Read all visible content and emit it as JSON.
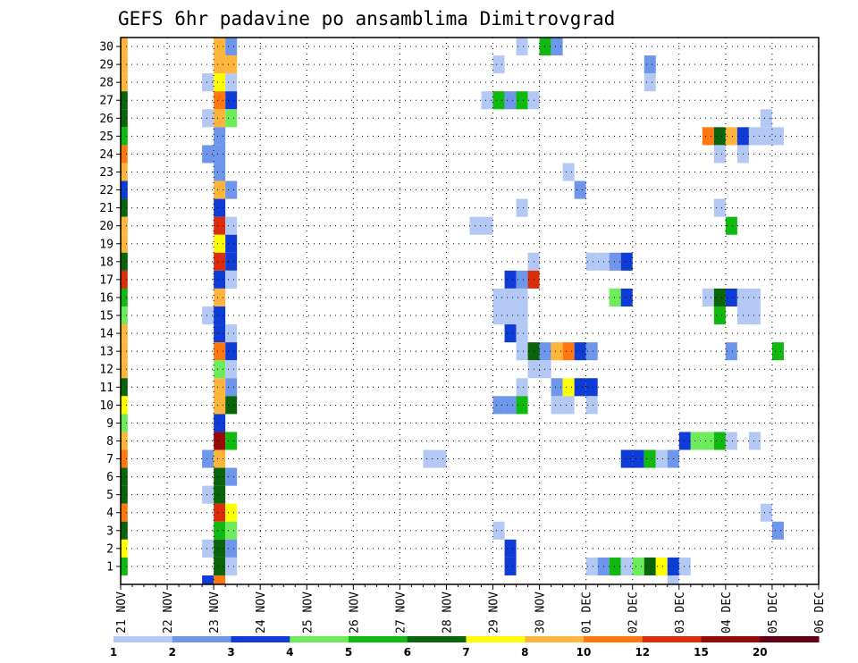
{
  "chart_data": {
    "type": "heatmap",
    "title": "GEFS 6hr padavine po ansamblima Dimitrovgrad",
    "xlabel": "",
    "ylabel": "",
    "x_tick_labels": [
      "21 NOV",
      "22 NOV",
      "23 NOV",
      "24 NOV",
      "25 NOV",
      "26 NOV",
      "27 NOV",
      "28 NOV",
      "29 NOV",
      "30 NOV",
      "01 DEC",
      "02 DEC",
      "03 DEC",
      "04 DEC",
      "05 DEC",
      "06 DEC"
    ],
    "y_tick_labels": [
      "1",
      "2",
      "3",
      "4",
      "5",
      "6",
      "7",
      "8",
      "9",
      "10",
      "11",
      "12",
      "13",
      "14",
      "15",
      "16",
      "17",
      "18",
      "19",
      "20",
      "21",
      "22",
      "23",
      "24",
      "25",
      "26",
      "27",
      "28",
      "29",
      "30"
    ],
    "grid": true,
    "legend_position": "bottom",
    "legend": {
      "boundaries": [
        1,
        2,
        3,
        4,
        5,
        6,
        7,
        8,
        10,
        12,
        15,
        20
      ],
      "labels": [
        "1",
        "2",
        "3",
        "4",
        "5",
        "6",
        "7",
        "8",
        "10",
        "12",
        "15",
        "20"
      ],
      "colors": [
        "#b4c8f5",
        "#6e96eb",
        "#0f3cd7",
        "#6eeb5a",
        "#0fb90f",
        "#0a640a",
        "#ffff00",
        "#ffb43c",
        "#ff780f",
        "#dc2d0a",
        "#960a0a",
        "#640014"
      ]
    },
    "cells": [
      [
        30,
        0,
        8
      ],
      [
        29,
        0,
        8
      ],
      [
        28,
        0,
        8
      ],
      [
        27,
        0,
        6
      ],
      [
        26,
        0,
        6
      ],
      [
        25,
        0,
        5
      ],
      [
        24,
        0,
        9
      ],
      [
        23,
        0,
        8
      ],
      [
        22,
        0,
        3
      ],
      [
        21,
        0,
        6
      ],
      [
        20,
        0,
        8
      ],
      [
        19,
        0,
        8
      ],
      [
        18,
        0,
        6
      ],
      [
        17,
        0,
        10
      ],
      [
        16,
        0,
        5
      ],
      [
        15,
        0,
        4
      ],
      [
        14,
        0,
        8
      ],
      [
        13,
        0,
        8
      ],
      [
        12,
        0,
        8
      ],
      [
        11,
        0,
        6
      ],
      [
        10,
        0,
        7
      ],
      [
        9,
        0,
        4
      ],
      [
        8,
        0,
        8
      ],
      [
        7,
        0,
        9
      ],
      [
        6,
        0,
        6
      ],
      [
        5,
        0,
        6
      ],
      [
        4,
        0,
        9
      ],
      [
        3,
        0,
        6
      ],
      [
        2,
        0,
        7
      ],
      [
        1,
        0,
        5
      ],
      [
        0,
        7,
        3
      ],
      [
        0,
        8,
        9
      ],
      [
        28,
        7,
        1
      ],
      [
        26,
        7,
        1
      ],
      [
        24,
        7,
        2
      ],
      [
        15,
        7,
        1
      ],
      [
        7,
        7,
        2
      ],
      [
        5,
        7,
        1
      ],
      [
        2,
        7,
        1
      ],
      [
        30,
        8,
        8
      ],
      [
        29,
        8,
        8
      ],
      [
        28,
        8,
        7
      ],
      [
        27,
        8,
        9
      ],
      [
        26,
        8,
        8
      ],
      [
        25,
        8,
        2
      ],
      [
        24,
        8,
        2
      ],
      [
        23,
        8,
        2
      ],
      [
        22,
        8,
        8
      ],
      [
        21,
        8,
        3
      ],
      [
        20,
        8,
        10
      ],
      [
        19,
        8,
        7
      ],
      [
        18,
        8,
        10
      ],
      [
        17,
        8,
        3
      ],
      [
        16,
        8,
        8
      ],
      [
        15,
        8,
        3
      ],
      [
        14,
        8,
        3
      ],
      [
        13,
        8,
        9
      ],
      [
        12,
        8,
        4
      ],
      [
        11,
        8,
        8
      ],
      [
        10,
        8,
        8
      ],
      [
        9,
        8,
        3
      ],
      [
        8,
        8,
        11
      ],
      [
        7,
        8,
        8
      ],
      [
        6,
        8,
        6
      ],
      [
        5,
        8,
        6
      ],
      [
        4,
        8,
        10
      ],
      [
        3,
        8,
        5
      ],
      [
        2,
        8,
        6
      ],
      [
        1,
        8,
        6
      ],
      [
        30,
        9,
        2
      ],
      [
        29,
        9,
        8
      ],
      [
        28,
        9,
        1
      ],
      [
        27,
        9,
        3
      ],
      [
        26,
        9,
        4
      ],
      [
        22,
        9,
        2
      ],
      [
        20,
        9,
        1
      ],
      [
        19,
        9,
        3
      ],
      [
        18,
        9,
        3
      ],
      [
        17,
        9,
        1
      ],
      [
        14,
        9,
        1
      ],
      [
        13,
        9,
        3
      ],
      [
        12,
        9,
        1
      ],
      [
        11,
        9,
        2
      ],
      [
        10,
        9,
        6
      ],
      [
        8,
        9,
        5
      ],
      [
        6,
        9,
        2
      ],
      [
        4,
        9,
        7
      ],
      [
        3,
        9,
        4
      ],
      [
        2,
        9,
        2
      ],
      [
        1,
        9,
        1
      ],
      [
        7,
        26,
        1
      ],
      [
        7,
        27,
        1
      ],
      [
        20,
        30,
        1
      ],
      [
        20,
        31,
        1
      ],
      [
        27,
        31,
        1
      ],
      [
        29,
        32,
        1
      ],
      [
        27,
        32,
        5
      ],
      [
        16,
        32,
        1
      ],
      [
        15,
        32,
        1
      ],
      [
        10,
        32,
        2
      ],
      [
        3,
        32,
        1
      ],
      [
        27,
        33,
        2
      ],
      [
        17,
        33,
        3
      ],
      [
        16,
        33,
        1
      ],
      [
        15,
        33,
        1
      ],
      [
        14,
        33,
        3
      ],
      [
        10,
        33,
        2
      ],
      [
        2,
        33,
        3
      ],
      [
        1,
        33,
        3
      ],
      [
        30,
        34,
        1
      ],
      [
        27,
        34,
        5
      ],
      [
        21,
        34,
        1
      ],
      [
        17,
        34,
        2
      ],
      [
        16,
        34,
        1
      ],
      [
        15,
        34,
        1
      ],
      [
        14,
        34,
        1
      ],
      [
        13,
        34,
        1
      ],
      [
        11,
        34,
        1
      ],
      [
        10,
        34,
        5
      ],
      [
        27,
        35,
        1
      ],
      [
        18,
        35,
        1
      ],
      [
        17,
        35,
        10
      ],
      [
        13,
        35,
        6
      ],
      [
        12,
        35,
        1
      ],
      [
        30,
        36,
        5
      ],
      [
        13,
        36,
        2
      ],
      [
        12,
        36,
        1
      ],
      [
        30,
        37,
        2
      ],
      [
        13,
        37,
        8
      ],
      [
        11,
        37,
        2
      ],
      [
        10,
        37,
        1
      ],
      [
        23,
        38,
        1
      ],
      [
        13,
        38,
        9
      ],
      [
        11,
        38,
        7
      ],
      [
        10,
        38,
        1
      ],
      [
        22,
        39,
        2
      ],
      [
        13,
        39,
        3
      ],
      [
        11,
        39,
        3
      ],
      [
        18,
        40,
        1
      ],
      [
        13,
        40,
        2
      ],
      [
        11,
        40,
        3
      ],
      [
        10,
        40,
        1
      ],
      [
        1,
        40,
        1
      ],
      [
        18,
        41,
        1
      ],
      [
        1,
        41,
        2
      ],
      [
        18,
        42,
        2
      ],
      [
        16,
        42,
        4
      ],
      [
        1,
        42,
        5
      ],
      [
        18,
        43,
        3
      ],
      [
        16,
        43,
        3
      ],
      [
        7,
        43,
        3
      ],
      [
        1,
        43,
        1
      ],
      [
        7,
        44,
        3
      ],
      [
        1,
        44,
        4
      ],
      [
        29,
        45,
        2
      ],
      [
        28,
        45,
        1
      ],
      [
        7,
        45,
        5
      ],
      [
        1,
        45,
        6
      ],
      [
        7,
        46,
        1
      ],
      [
        1,
        46,
        7
      ],
      [
        7,
        47,
        2
      ],
      [
        1,
        47,
        3
      ],
      [
        0,
        47,
        1
      ],
      [
        8,
        48,
        3
      ],
      [
        1,
        48,
        1
      ],
      [
        8,
        49,
        4
      ],
      [
        25,
        50,
        9
      ],
      [
        16,
        50,
        1
      ],
      [
        8,
        50,
        4
      ],
      [
        25,
        51,
        6
      ],
      [
        24,
        51,
        1
      ],
      [
        16,
        51,
        6
      ],
      [
        15,
        51,
        5
      ],
      [
        8,
        51,
        5
      ],
      [
        21,
        51,
        1
      ],
      [
        25,
        52,
        8
      ],
      [
        20,
        52,
        5
      ],
      [
        16,
        52,
        3
      ],
      [
        13,
        52,
        2
      ],
      [
        8,
        52,
        1
      ],
      [
        25,
        53,
        3
      ],
      [
        24,
        53,
        1
      ],
      [
        16,
        53,
        1
      ],
      [
        15,
        53,
        1
      ],
      [
        25,
        54,
        1
      ],
      [
        16,
        54,
        1
      ],
      [
        15,
        54,
        1
      ],
      [
        8,
        54,
        1
      ],
      [
        26,
        55,
        1
      ],
      [
        25,
        55,
        1
      ],
      [
        4,
        55,
        1
      ],
      [
        25,
        56,
        1
      ],
      [
        13,
        56,
        5
      ],
      [
        3,
        56,
        2
      ]
    ]
  },
  "page": {
    "bg": "#ffffff"
  }
}
